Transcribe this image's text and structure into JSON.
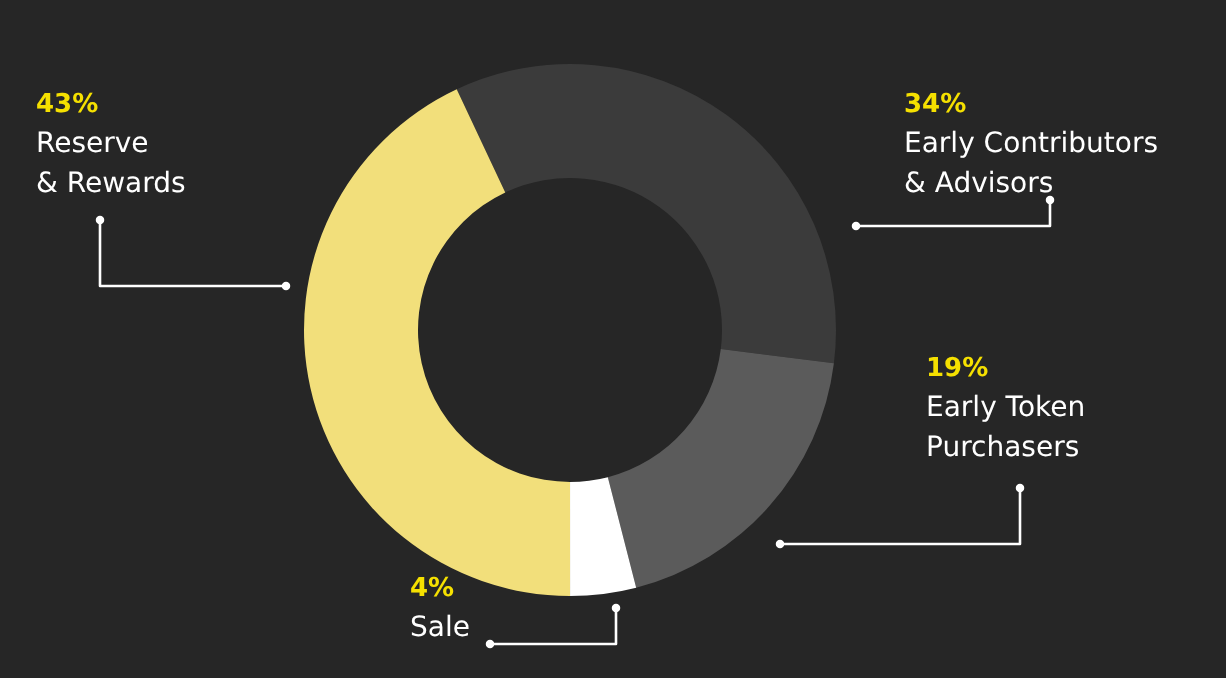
{
  "chart_data": {
    "type": "donut",
    "categories": [
      "Early Contributors & Advisors",
      "Early Token Purchasers",
      "Sale",
      "Reserve & Rewards"
    ],
    "values": [
      34,
      19,
      4,
      43
    ],
    "colors": [
      "#3b3b3b",
      "#5b5b5b",
      "#ffffff",
      "#f2df7b"
    ],
    "value_labels": [
      "34%",
      "19%",
      "4%",
      "43%"
    ]
  }
}
